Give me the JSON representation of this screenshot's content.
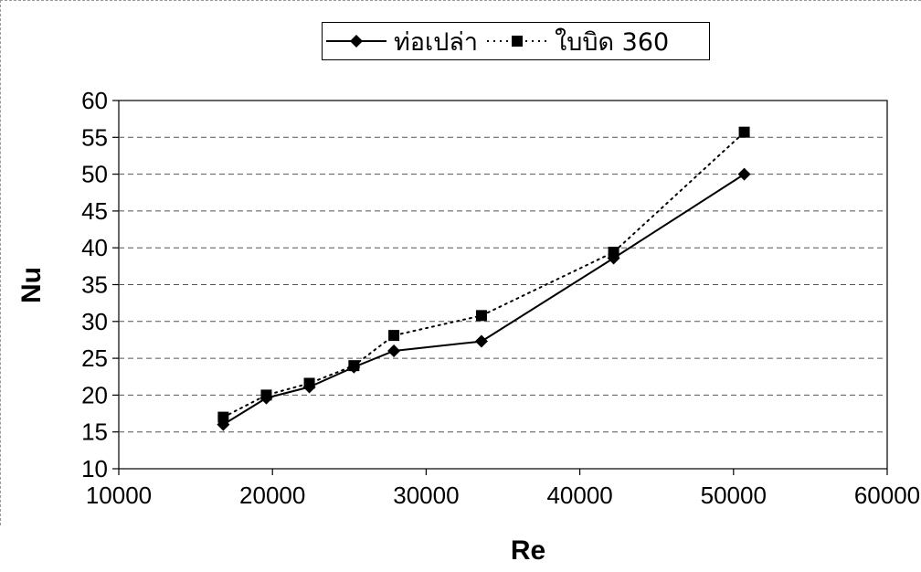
{
  "chart_data": {
    "type": "line",
    "xlabel": "Re",
    "ylabel": "Nu",
    "xlim": [
      10000,
      60000
    ],
    "ylim": [
      10,
      60
    ],
    "x_ticks": [
      10000,
      20000,
      30000,
      40000,
      50000,
      60000
    ],
    "y_ticks": [
      10,
      15,
      20,
      25,
      30,
      35,
      40,
      45,
      50,
      55,
      60
    ],
    "grid": "horizontal-dashed",
    "legend_position": "top",
    "series": [
      {
        "name": "ท่อเปล่า",
        "style": "solid",
        "marker": "diamond",
        "color": "#000000",
        "points": [
          {
            "x": 16800,
            "y": 16.0
          },
          {
            "x": 19600,
            "y": 19.6
          },
          {
            "x": 22400,
            "y": 21.1
          },
          {
            "x": 25300,
            "y": 23.8
          },
          {
            "x": 27900,
            "y": 26.0
          },
          {
            "x": 33600,
            "y": 27.3
          },
          {
            "x": 42200,
            "y": 38.6
          },
          {
            "x": 50700,
            "y": 50.0
          }
        ]
      },
      {
        "name": "ใบบิด 360",
        "style": "dotted",
        "marker": "square",
        "color": "#000000",
        "points": [
          {
            "x": 16800,
            "y": 17.0
          },
          {
            "x": 19600,
            "y": 20.0
          },
          {
            "x": 22400,
            "y": 21.6
          },
          {
            "x": 25300,
            "y": 24.0
          },
          {
            "x": 27900,
            "y": 28.1
          },
          {
            "x": 33600,
            "y": 30.8
          },
          {
            "x": 42200,
            "y": 39.4
          },
          {
            "x": 50700,
            "y": 55.7
          }
        ]
      }
    ]
  }
}
